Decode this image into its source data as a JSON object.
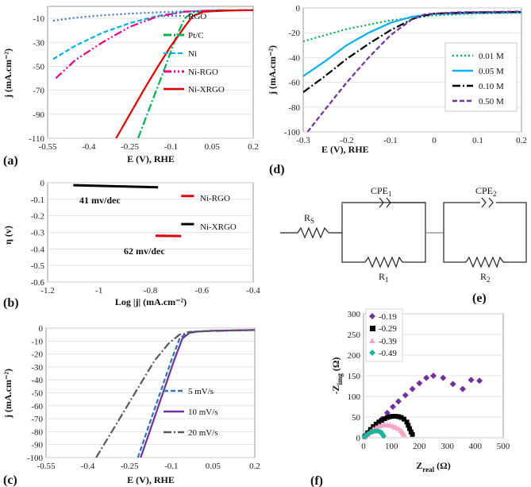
{
  "chart_data": [
    {
      "id": "a",
      "panel_label": "(a)",
      "type": "line",
      "xlabel": "E (V), RHE",
      "ylabel": "j (mA.cm⁻²)",
      "xlim": [
        -0.55,
        0.2
      ],
      "ylim": [
        -110,
        0
      ],
      "x_ticks": [
        "-0.55",
        "-0.4",
        "-0.25",
        "-0.1",
        "0.05",
        "0.2"
      ],
      "y_ticks": [
        "-10",
        "-30",
        "-50",
        "-70",
        "-90",
        "-110"
      ],
      "series": [
        {
          "name": "RGO",
          "color": "#4472C4",
          "dash": "dot",
          "points": [
            [
              -0.53,
              -12
            ],
            [
              -0.45,
              -9.5
            ],
            [
              -0.35,
              -7.5
            ],
            [
              -0.25,
              -6
            ],
            [
              -0.15,
              -5
            ],
            [
              -0.05,
              -4.2
            ],
            [
              0.05,
              -3.6
            ],
            [
              0.2,
              -3.2
            ]
          ]
        },
        {
          "name": "Pt/C",
          "color": "#00B050",
          "dash": "dashdot",
          "points": [
            [
              -0.22,
              -110
            ],
            [
              -0.17,
              -80
            ],
            [
              -0.12,
              -50
            ],
            [
              -0.08,
              -25
            ],
            [
              -0.05,
              -10
            ],
            [
              -0.02,
              -5
            ],
            [
              0.05,
              -3.6
            ],
            [
              0.2,
              -3.2
            ]
          ]
        },
        {
          "name": "Ni",
          "color": "#00B0F0",
          "dash": "dash",
          "points": [
            [
              -0.53,
              -44
            ],
            [
              -0.45,
              -33
            ],
            [
              -0.35,
              -22
            ],
            [
              -0.25,
              -14
            ],
            [
              -0.15,
              -8
            ],
            [
              -0.05,
              -4.5
            ],
            [
              0.05,
              -3.4
            ],
            [
              0.2,
              -3.2
            ]
          ]
        },
        {
          "name": "Ni-RGO",
          "color": "#E6007E",
          "dash": "dashdotdot",
          "points": [
            [
              -0.52,
              -60
            ],
            [
              -0.45,
              -45
            ],
            [
              -0.35,
              -30
            ],
            [
              -0.25,
              -17
            ],
            [
              -0.15,
              -8.5
            ],
            [
              -0.05,
              -4.5
            ],
            [
              0.05,
              -3.4
            ],
            [
              0.2,
              -3.2
            ]
          ]
        },
        {
          "name": "Ni-XRGO",
          "color": "#E00000",
          "dash": "solid",
          "points": [
            [
              -0.3,
              -110
            ],
            [
              -0.25,
              -90
            ],
            [
              -0.2,
              -70
            ],
            [
              -0.15,
              -51
            ],
            [
              -0.1,
              -33
            ],
            [
              -0.05,
              -17
            ],
            [
              -0.02,
              -8
            ],
            [
              0.02,
              -4.5
            ],
            [
              0.1,
              -3.6
            ],
            [
              0.2,
              -3.2
            ]
          ]
        }
      ]
    },
    {
      "id": "b",
      "panel_label": "(b)",
      "type": "line",
      "xlabel": "Log |j|  (mA.cm⁻²)",
      "ylabel": "η (v)",
      "xlim": [
        -1.2,
        -0.4
      ],
      "ylim": [
        -0.6,
        0
      ],
      "x_ticks": [
        "-1.2",
        "-1",
        "-0.8",
        "-0.6",
        "-0.4"
      ],
      "y_ticks": [
        "0",
        "-0.1",
        "-0.2",
        "-0.3",
        "-0.4",
        "-0.5",
        "-0.6"
      ],
      "annotations": [
        "41 mv/dec",
        "62 mv/dec"
      ],
      "series": [
        {
          "name": "Ni-XRGO",
          "color": "#000000",
          "points": [
            [
              -1.1,
              -0.015
            ],
            [
              -0.77,
              -0.028
            ]
          ]
        },
        {
          "name": "Ni-RGO",
          "color": "#E00000",
          "points": [
            [
              -0.78,
              -0.32
            ],
            [
              -0.68,
              -0.322
            ]
          ]
        },
        {
          "name": "Ni-RGO legend",
          "color": "#E00000",
          "points": [
            [
              -0.68,
              -0.08
            ],
            [
              -0.63,
              -0.08
            ]
          ]
        },
        {
          "name": "Ni-XRGO legend",
          "color": "#000000",
          "points": [
            [
              -0.68,
              -0.25
            ],
            [
              -0.63,
              -0.25
            ]
          ]
        }
      ],
      "legend_labels": [
        "Ni-RGO",
        "Ni-XRGO"
      ]
    },
    {
      "id": "c",
      "panel_label": "(c)",
      "type": "line",
      "xlabel": "E (V), RHE",
      "ylabel": "j (mA.cm⁻²)",
      "xlim": [
        -0.55,
        0.2
      ],
      "ylim": [
        -100,
        0
      ],
      "x_ticks": [
        "-0.55",
        "-0.4",
        "-0.25",
        "-0.1",
        "0.05",
        "0.2"
      ],
      "y_ticks": [
        "0",
        "-10",
        "-20",
        "-30",
        "-40",
        "-50",
        "-60",
        "-70",
        "-80",
        "-90",
        "-100"
      ],
      "series": [
        {
          "name": "5 mV/s",
          "color": "#2E75B6",
          "dash": "dash",
          "points": [
            [
              -0.22,
              -100
            ],
            [
              -0.18,
              -75
            ],
            [
              -0.14,
              -50
            ],
            [
              -0.1,
              -25
            ],
            [
              -0.07,
              -8
            ],
            [
              -0.04,
              -3
            ],
            [
              0.05,
              -2
            ],
            [
              0.2,
              -1.5
            ]
          ]
        },
        {
          "name": "10 mV/s",
          "color": "#7030A0",
          "dash": "solid",
          "points": [
            [
              -0.21,
              -100
            ],
            [
              -0.17,
              -75
            ],
            [
              -0.13,
              -50
            ],
            [
              -0.09,
              -25
            ],
            [
              -0.06,
              -8
            ],
            [
              -0.03,
              -3
            ],
            [
              0.05,
              -2
            ],
            [
              0.2,
              -1.5
            ]
          ]
        },
        {
          "name": "20 mV/s",
          "color": "#595959",
          "dash": "dashdot",
          "points": [
            [
              -0.37,
              -100
            ],
            [
              -0.3,
              -75
            ],
            [
              -0.23,
              -50
            ],
            [
              -0.16,
              -25
            ],
            [
              -0.11,
              -12
            ],
            [
              -0.07,
              -5
            ],
            [
              0,
              -2.5
            ],
            [
              0.2,
              -1.5
            ]
          ]
        }
      ]
    },
    {
      "id": "d",
      "panel_label": "(d)",
      "type": "line",
      "xlabel": "E (V), RHE",
      "ylabel": "j (mA.cm⁻²)",
      "xlim": [
        -0.3,
        0.2
      ],
      "ylim": [
        -100,
        0
      ],
      "x_ticks": [
        "-0.3",
        "-0.2",
        "-0.1",
        "0",
        "0.1",
        "0.2"
      ],
      "y_ticks": [
        "0",
        "-20",
        "-40",
        "-60",
        "-80",
        "-100"
      ],
      "series": [
        {
          "name": "0.01 M",
          "color": "#00B050",
          "dash": "dot",
          "points": [
            [
              -0.3,
              -27
            ],
            [
              -0.2,
              -17
            ],
            [
              -0.1,
              -10
            ],
            [
              0,
              -6
            ],
            [
              0.1,
              -4.5
            ],
            [
              0.2,
              -4
            ]
          ]
        },
        {
          "name": "0.05 M",
          "color": "#00B0F0",
          "dash": "solid",
          "points": [
            [
              -0.3,
              -55
            ],
            [
              -0.25,
              -43
            ],
            [
              -0.2,
              -30
            ],
            [
              -0.15,
              -20
            ],
            [
              -0.1,
              -12
            ],
            [
              -0.05,
              -7
            ],
            [
              0,
              -5
            ],
            [
              0.1,
              -4
            ],
            [
              0.2,
              -3.5
            ]
          ]
        },
        {
          "name": "0.10 M",
          "color": "#000000",
          "dash": "dashdot",
          "points": [
            [
              -0.3,
              -68
            ],
            [
              -0.25,
              -55
            ],
            [
              -0.2,
              -41
            ],
            [
              -0.15,
              -29
            ],
            [
              -0.1,
              -18
            ],
            [
              -0.05,
              -9
            ],
            [
              -0.02,
              -6
            ],
            [
              0,
              -4.5
            ],
            [
              0.1,
              -3.5
            ],
            [
              0.2,
              -3.2
            ]
          ]
        },
        {
          "name": "0.50 M",
          "color": "#7030A0",
          "dash": "dash",
          "points": [
            [
              -0.29,
              -100
            ],
            [
              -0.25,
              -82
            ],
            [
              -0.2,
              -60
            ],
            [
              -0.15,
              -40
            ],
            [
              -0.1,
              -22
            ],
            [
              -0.05,
              -9
            ],
            [
              -0.02,
              -5
            ],
            [
              0.05,
              -3.5
            ],
            [
              0.2,
              -2.8
            ]
          ]
        }
      ]
    },
    {
      "id": "f",
      "panel_label": "(f)",
      "type": "scatter",
      "xlabel": "Z",
      "xlabel_sub": "real",
      "xlabel_unit": " (Ω)",
      "ylabel": "-Z",
      "ylabel_sub": "img",
      "ylabel_unit": " (Ω)",
      "xlim": [
        0,
        500
      ],
      "ylim": [
        0,
        300
      ],
      "x_ticks": [
        "0",
        "100",
        "200",
        "300",
        "400",
        "500"
      ],
      "y_ticks": [
        "0",
        "50",
        "100",
        "150",
        "200",
        "250",
        "300"
      ],
      "series": [
        {
          "name": "-0.19",
          "color": "#7030A0",
          "marker": "diamond",
          "points": [
            [
              5,
              5
            ],
            [
              25,
              18
            ],
            [
              45,
              30
            ],
            [
              65,
              45
            ],
            [
              85,
              60
            ],
            [
              105,
              75
            ],
            [
              125,
              88
            ],
            [
              150,
              103
            ],
            [
              175,
              118
            ],
            [
              200,
              132
            ],
            [
              225,
              145
            ],
            [
              250,
              150
            ],
            [
              285,
              145
            ],
            [
              320,
              130
            ],
            [
              355,
              118
            ],
            [
              385,
              140
            ],
            [
              415,
              138
            ]
          ]
        },
        {
          "name": "-0.29",
          "color": "#000000",
          "marker": "square",
          "points": [
            [
              5,
              3
            ],
            [
              15,
              12
            ],
            [
              25,
              20
            ],
            [
              35,
              27
            ],
            [
              45,
              33
            ],
            [
              55,
              38
            ],
            [
              65,
              42
            ],
            [
              75,
              46
            ],
            [
              85,
              49
            ],
            [
              95,
              51
            ],
            [
              105,
              52
            ],
            [
              115,
              52
            ],
            [
              125,
              51
            ],
            [
              135,
              49
            ],
            [
              145,
              45
            ],
            [
              155,
              38
            ],
            [
              160,
              30
            ],
            [
              165,
              22
            ],
            [
              170,
              14
            ],
            [
              175,
              8
            ]
          ]
        },
        {
          "name": "-0.39",
          "color": "#F4A6C8",
          "marker": "triangle",
          "points": [
            [
              5,
              2
            ],
            [
              15,
              8
            ],
            [
              25,
              14
            ],
            [
              35,
              20
            ],
            [
              45,
              24
            ],
            [
              55,
              28
            ],
            [
              65,
              30
            ],
            [
              75,
              31
            ],
            [
              85,
              31
            ],
            [
              95,
              30
            ],
            [
              105,
              28
            ],
            [
              115,
              25
            ],
            [
              125,
              22
            ],
            [
              135,
              17
            ],
            [
              140,
              12
            ],
            [
              145,
              8
            ]
          ]
        },
        {
          "name": "-0.49",
          "color": "#20B39B",
          "marker": "circle",
          "points": [
            [
              3,
              2
            ],
            [
              10,
              6
            ],
            [
              18,
              10
            ],
            [
              26,
              13
            ],
            [
              34,
              15
            ],
            [
              42,
              16
            ],
            [
              50,
              16
            ],
            [
              58,
              15
            ],
            [
              64,
              12
            ],
            [
              68,
              8
            ],
            [
              72,
              4
            ]
          ]
        }
      ]
    }
  ],
  "circuit": {
    "panel_label": "(e)",
    "labels": {
      "rs": "R",
      "rs_sub": "S",
      "cpe1": "CPE",
      "cpe1_sub": "1",
      "r1": "R",
      "r1_sub": "1",
      "cpe2": "CPE",
      "cpe2_sub": "2",
      "r2": "R",
      "r2_sub": "2"
    }
  }
}
